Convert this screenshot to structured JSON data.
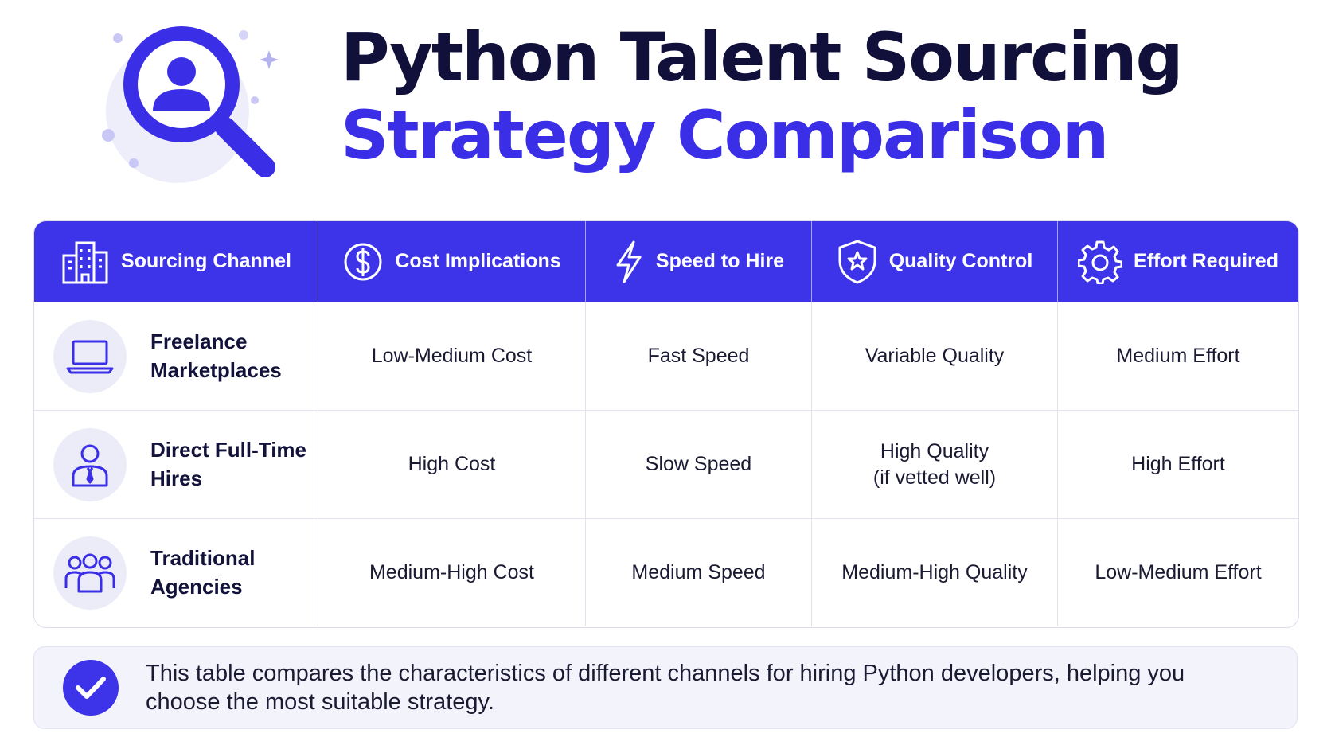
{
  "title": {
    "line1": "Python Talent Sourcing",
    "line2": "Strategy Comparison"
  },
  "colors": {
    "accent": "#3d33e8",
    "title_dark": "#10103a",
    "title_accent": "#3a2fe6",
    "icon_bg": "#ececf8"
  },
  "table": {
    "headers": [
      {
        "label": "Sourcing Channel",
        "icon": "building-icon"
      },
      {
        "label": "Cost Implications",
        "icon": "dollar-icon"
      },
      {
        "label": "Speed to Hire",
        "icon": "lightning-icon"
      },
      {
        "label": "Quality Control",
        "icon": "shield-star-icon"
      },
      {
        "label": "Effort Required",
        "icon": "gear-icon"
      }
    ],
    "rows": [
      {
        "channel": "Freelance Marketplaces",
        "icon": "laptop-icon",
        "cost": "Low-Medium Cost",
        "speed": "Fast Speed",
        "quality": "Variable Quality",
        "effort": "Medium Effort"
      },
      {
        "channel": "Direct Full-Time Hires",
        "icon": "employee-icon",
        "cost": "High Cost",
        "speed": "Slow Speed",
        "quality": "High Quality\n(if vetted well)",
        "effort": "High Effort"
      },
      {
        "channel": "Traditional Agencies",
        "icon": "group-icon",
        "cost": "Medium-High Cost",
        "speed": "Medium Speed",
        "quality": "Medium-High Quality",
        "effort": "Low-Medium Effort"
      }
    ]
  },
  "note": {
    "icon": "checkmark-icon",
    "text": "This table compares the characteristics of different channels for hiring Python developers, helping you choose the most suitable strategy."
  }
}
